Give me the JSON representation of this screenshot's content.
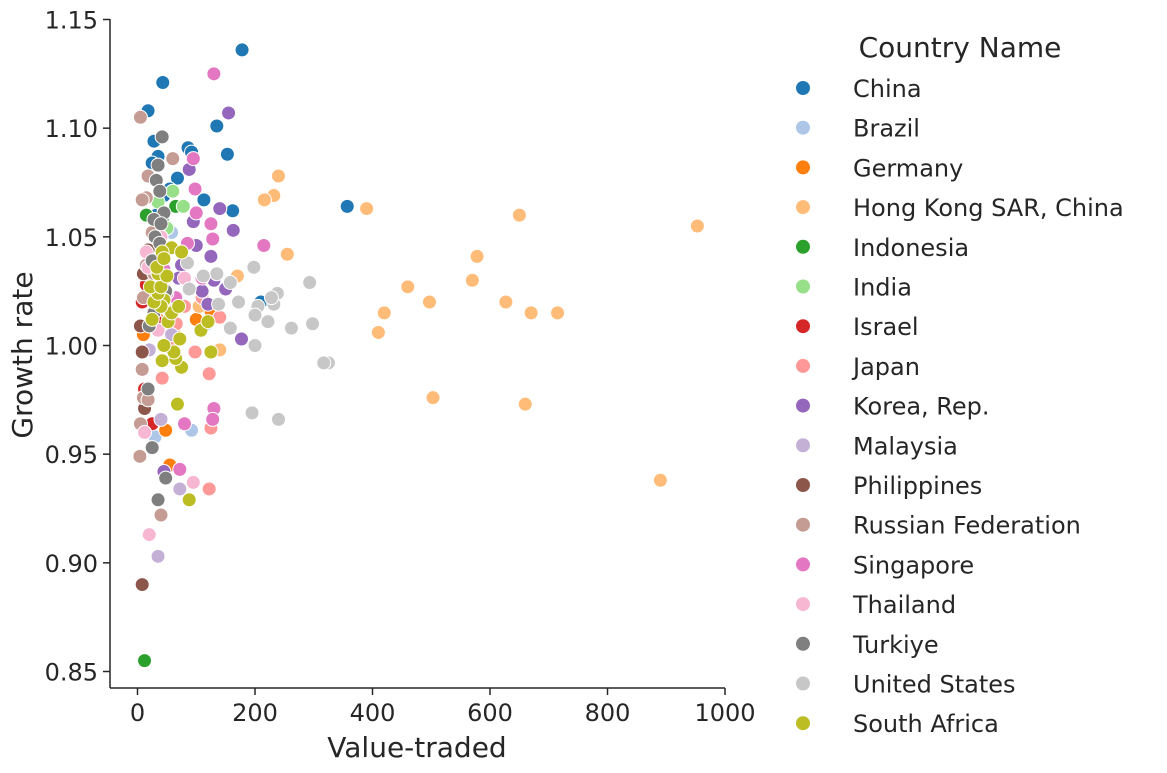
{
  "chart_data": {
    "type": "scatter",
    "xlabel": "Value-traded",
    "ylabel": "Growth rate",
    "xlim": [
      -45,
      1000
    ],
    "ylim": [
      0.84,
      1.15
    ],
    "xticks": [
      0,
      200,
      400,
      600,
      800,
      1000
    ],
    "yticks": [
      0.85,
      0.9,
      0.95,
      1.0,
      1.05,
      1.1,
      1.15
    ],
    "xtick_labels": [
      "0",
      "200",
      "400",
      "600",
      "800",
      "1000"
    ],
    "ytick_labels": [
      "0.85",
      "0.90",
      "0.95",
      "1.00",
      "1.05",
      "1.10",
      "1.15"
    ],
    "grid": false,
    "legend": {
      "title": "Country Name",
      "placement": "right-outside"
    },
    "series": [
      {
        "name": "China",
        "color": "#1f77b4",
        "points": [
          [
            178,
            1.136
          ],
          [
            43,
            1.121
          ],
          [
            18,
            1.108
          ],
          [
            135,
            1.101
          ],
          [
            28,
            1.094
          ],
          [
            86,
            1.091
          ],
          [
            92,
            1.089
          ],
          [
            153,
            1.088
          ],
          [
            35,
            1.087
          ],
          [
            25,
            1.084
          ],
          [
            68,
            1.077
          ],
          [
            113,
            1.067
          ],
          [
            162,
            1.062
          ],
          [
            357,
            1.064
          ],
          [
            55,
            1.072
          ],
          [
            45,
            1.069
          ],
          [
            210,
            1.02
          ],
          [
            32,
            1.06
          ]
        ]
      },
      {
        "name": "Brazil",
        "color": "#aec7e8",
        "points": [
          [
            92,
            0.961
          ],
          [
            30,
            0.958
          ],
          [
            75,
            1.032
          ],
          [
            118,
            1.01
          ],
          [
            58,
            1.052
          ],
          [
            140,
            1.063
          ]
        ]
      },
      {
        "name": "Germany",
        "color": "#ff7f0e",
        "points": [
          [
            48,
            0.961
          ],
          [
            55,
            0.945
          ],
          [
            10,
            1.005
          ],
          [
            35,
            1.012
          ],
          [
            62,
            1.008
          ],
          [
            100,
            1.012
          ],
          [
            125,
            1.016
          ]
        ]
      },
      {
        "name": "Hong Kong SAR, China",
        "color": "#ffbb78",
        "points": [
          [
            953,
            1.055
          ],
          [
            890,
            0.938
          ],
          [
            715,
            1.015
          ],
          [
            660,
            0.973
          ],
          [
            670,
            1.015
          ],
          [
            650,
            1.06
          ],
          [
            627,
            1.02
          ],
          [
            578,
            1.041
          ],
          [
            570,
            1.03
          ],
          [
            503,
            0.976
          ],
          [
            497,
            1.02
          ],
          [
            460,
            1.027
          ],
          [
            420,
            1.015
          ],
          [
            410,
            1.006
          ],
          [
            390,
            1.063
          ],
          [
            255,
            1.042
          ],
          [
            240,
            1.078
          ],
          [
            232,
            1.069
          ],
          [
            216,
            1.067
          ],
          [
            170,
            1.032
          ],
          [
            140,
            0.998
          ],
          [
            105,
            1.018
          ]
        ]
      },
      {
        "name": "Indonesia",
        "color": "#2ca02c",
        "points": [
          [
            12,
            0.855
          ],
          [
            15,
            1.06
          ],
          [
            42,
            1.058
          ],
          [
            65,
            1.064
          ],
          [
            30,
            1.05
          ]
        ]
      },
      {
        "name": "India",
        "color": "#98df8a",
        "points": [
          [
            60,
            1.071
          ],
          [
            78,
            1.064
          ],
          [
            35,
            1.066
          ],
          [
            50,
            1.054
          ],
          [
            20,
            1.04
          ]
        ]
      },
      {
        "name": "Israel",
        "color": "#d62728",
        "points": [
          [
            25,
            0.964
          ],
          [
            12,
            0.98
          ],
          [
            8,
            1.02
          ],
          [
            15,
            1.028
          ],
          [
            30,
            1.012
          ]
        ]
      },
      {
        "name": "Japan",
        "color": "#ff9896",
        "points": [
          [
            122,
            0.934
          ],
          [
            125,
            0.962
          ],
          [
            122,
            0.987
          ],
          [
            98,
            0.997
          ],
          [
            140,
            1.013
          ],
          [
            80,
            1.018
          ],
          [
            58,
            1.003
          ],
          [
            42,
            0.985
          ],
          [
            66,
            1.01
          ],
          [
            110,
            1.022
          ]
        ]
      },
      {
        "name": "Korea, Rep.",
        "color": "#9467bd",
        "points": [
          [
            155,
            1.107
          ],
          [
            163,
            1.053
          ],
          [
            177,
            1.003
          ],
          [
            140,
            1.063
          ],
          [
            125,
            1.041
          ],
          [
            110,
            1.025
          ],
          [
            88,
            1.081
          ],
          [
            95,
            1.057
          ],
          [
            75,
            1.037
          ],
          [
            55,
            1.023
          ],
          [
            120,
            1.019
          ],
          [
            45,
            0.942
          ],
          [
            130,
            1.03
          ],
          [
            150,
            1.026
          ],
          [
            100,
            1.046
          ],
          [
            70,
            1.031
          ]
        ]
      },
      {
        "name": "Malaysia",
        "color": "#c5b0d5",
        "points": [
          [
            35,
            0.903
          ],
          [
            72,
            0.934
          ],
          [
            40,
            0.966
          ],
          [
            58,
            1.005
          ],
          [
            20,
            0.998
          ],
          [
            50,
            1.017
          ]
        ]
      },
      {
        "name": "Philippines",
        "color": "#8c564b",
        "points": [
          [
            8,
            0.89
          ],
          [
            12,
            0.971
          ],
          [
            5,
            1.009
          ],
          [
            10,
            1.033
          ],
          [
            18,
            1.044
          ],
          [
            25,
            1.025
          ],
          [
            8,
            0.997
          ]
        ]
      },
      {
        "name": "Russian Federation",
        "color": "#c49c94",
        "points": [
          [
            5,
            1.105
          ],
          [
            40,
            0.922
          ],
          [
            4,
            0.949
          ],
          [
            5,
            0.964
          ],
          [
            10,
            0.976
          ],
          [
            18,
            0.975
          ],
          [
            8,
            0.989
          ],
          [
            15,
            1.068
          ],
          [
            18,
            1.078
          ],
          [
            60,
            1.086
          ],
          [
            8,
            1.067
          ],
          [
            25,
            1.052
          ],
          [
            15,
            1.037
          ],
          [
            28,
            1.033
          ],
          [
            10,
            1.022
          ]
        ]
      },
      {
        "name": "Singapore",
        "color": "#e377c2",
        "points": [
          [
            130,
            1.125
          ],
          [
            95,
            1.086
          ],
          [
            215,
            1.046
          ],
          [
            125,
            1.056
          ],
          [
            130,
            0.971
          ],
          [
            128,
            0.966
          ],
          [
            80,
            0.964
          ],
          [
            72,
            0.943
          ],
          [
            100,
            1.061
          ],
          [
            85,
            1.047
          ],
          [
            110,
            1.031
          ],
          [
            45,
            1.035
          ],
          [
            65,
            1.022
          ],
          [
            55,
            1.016
          ],
          [
            128,
            1.049
          ],
          [
            98,
            1.072
          ]
        ]
      },
      {
        "name": "Thailand",
        "color": "#f7b6d2",
        "points": [
          [
            20,
            0.913
          ],
          [
            95,
            0.937
          ],
          [
            12,
            0.96
          ],
          [
            18,
            1.036
          ],
          [
            50,
            1.024
          ],
          [
            35,
            1.007
          ],
          [
            60,
            1.016
          ],
          [
            80,
            1.031
          ],
          [
            15,
            1.043
          ],
          [
            40,
            1.05
          ]
        ]
      },
      {
        "name": "Turkiye",
        "color": "#7f7f7f",
        "points": [
          [
            35,
            0.929
          ],
          [
            48,
            0.939
          ],
          [
            25,
            0.953
          ],
          [
            42,
            1.096
          ],
          [
            35,
            1.083
          ],
          [
            32,
            1.076
          ],
          [
            38,
            1.071
          ],
          [
            45,
            1.061
          ],
          [
            28,
            1.058
          ],
          [
            40,
            1.056
          ],
          [
            30,
            1.05
          ],
          [
            38,
            1.047
          ],
          [
            25,
            1.039
          ],
          [
            35,
            1.033
          ],
          [
            42,
            1.03
          ],
          [
            48,
            1.025
          ],
          [
            30,
            1.02
          ],
          [
            20,
            1.009
          ],
          [
            18,
            0.98
          ],
          [
            28,
            1.015
          ]
        ]
      },
      {
        "name": "United States",
        "color": "#c7c7c7",
        "points": [
          [
            325,
            0.992
          ],
          [
            317,
            0.992
          ],
          [
            298,
            1.01
          ],
          [
            293,
            1.029
          ],
          [
            262,
            1.008
          ],
          [
            240,
            0.966
          ],
          [
            238,
            1.024
          ],
          [
            232,
            1.019
          ],
          [
            228,
            1.022
          ],
          [
            222,
            1.011
          ],
          [
            205,
            1.018
          ],
          [
            200,
            1.014
          ],
          [
            198,
            1.036
          ],
          [
            200,
            1.0
          ],
          [
            195,
            0.969
          ],
          [
            172,
            1.02
          ],
          [
            158,
            1.008
          ],
          [
            158,
            1.029
          ],
          [
            138,
            1.019
          ],
          [
            135,
            1.033
          ],
          [
            112,
            1.032
          ],
          [
            88,
            1.026
          ],
          [
            85,
            1.038
          ]
        ]
      },
      {
        "name": "South Africa",
        "color": "#bcbd22",
        "points": [
          [
            88,
            0.929
          ],
          [
            68,
            0.973
          ],
          [
            75,
            0.99
          ],
          [
            42,
            0.993
          ],
          [
            65,
            0.994
          ],
          [
            72,
            1.003
          ],
          [
            62,
            0.997
          ],
          [
            45,
            1.0
          ],
          [
            52,
            1.011
          ],
          [
            58,
            1.015
          ],
          [
            45,
            1.021
          ],
          [
            25,
            1.012
          ],
          [
            40,
            1.018
          ],
          [
            28,
            1.02
          ],
          [
            35,
            1.024
          ],
          [
            70,
            1.018
          ],
          [
            22,
            1.027
          ],
          [
            40,
            1.027
          ],
          [
            35,
            1.033
          ],
          [
            50,
            1.032
          ],
          [
            58,
            1.045
          ],
          [
            75,
            1.043
          ],
          [
            42,
            1.043
          ],
          [
            33,
            1.036
          ],
          [
            45,
            1.04
          ],
          [
            125,
            0.997
          ],
          [
            108,
            1.007
          ],
          [
            120,
            1.011
          ]
        ]
      }
    ]
  }
}
